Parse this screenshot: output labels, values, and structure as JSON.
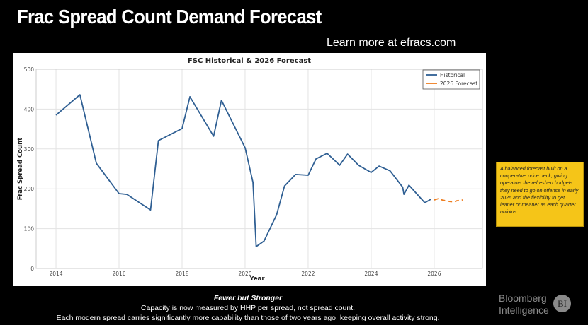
{
  "header": {
    "title": "Frac Spread Count Demand Forecast",
    "learn_more": "Learn more at efracs.com"
  },
  "note_box": {
    "text": "A balanced forecast built on a cooperative price deck, giving operators the refreshed budgets they need to go on offense in early 2026 and the flexibility to get leaner or meaner as each quarter unfolds."
  },
  "footer": {
    "title": "Fewer but Stronger",
    "line1": "Capacity is now measured by HHP per spread, not spread count.",
    "line2": "Each modern spread carries significantly more capability than those of two years ago, keeping overall activity strong."
  },
  "brand": {
    "line1": "Bloomberg",
    "line2": "Intelligence",
    "badge": "BI"
  },
  "colors": {
    "historical": "#2f5f93",
    "forecast": "#ee7d1f",
    "note_bg": "#f5c518"
  },
  "chart_data": {
    "type": "line",
    "title": "FSC Historical & 2026 Forecast",
    "xlabel": "Year",
    "ylabel": "Frac Spread Count",
    "xlim": [
      2013.37,
      2027.53
    ],
    "ylim": [
      0,
      500
    ],
    "xticks": [
      2014,
      2016,
      2018,
      2020,
      2022,
      2024,
      2026
    ],
    "xtick_labels": [
      "2014",
      "2016",
      "2018",
      "2020",
      "2022",
      "2024",
      "2026"
    ],
    "yticks": [
      0,
      100,
      200,
      300,
      400,
      500
    ],
    "ytick_labels": [
      "0",
      "100",
      "200",
      "300",
      "400",
      "500"
    ],
    "grid": true,
    "legend_position": "top-right",
    "series": [
      {
        "name": "Historical",
        "style": "solid",
        "x": [
          2014.0,
          2014.76,
          2015.28,
          2016.0,
          2016.25,
          2017.0,
          2017.25,
          2018.0,
          2018.25,
          2019.0,
          2019.25,
          2020.0,
          2020.25,
          2020.35,
          2020.6,
          2021.0,
          2021.25,
          2021.6,
          2022.0,
          2022.25,
          2022.6,
          2023.0,
          2023.25,
          2023.6,
          2024.0,
          2024.25,
          2024.6,
          2025.0,
          2025.04,
          2025.2,
          2025.7,
          2025.9
        ],
        "y": [
          385,
          436,
          264,
          188,
          186,
          147,
          321,
          351,
          431,
          332,
          422,
          303,
          216,
          55,
          69,
          135,
          207,
          236,
          234,
          275,
          289,
          259,
          287,
          259,
          241,
          257,
          245,
          204,
          186,
          209,
          165,
          174
        ]
      },
      {
        "name": "2026 Forecast",
        "style": "dashed",
        "x": [
          2026.0,
          2026.12,
          2026.25,
          2026.5,
          2026.62,
          2026.72,
          2026.9
        ],
        "y": [
          172,
          175,
          172,
          168,
          167,
          170,
          172
        ]
      }
    ]
  }
}
